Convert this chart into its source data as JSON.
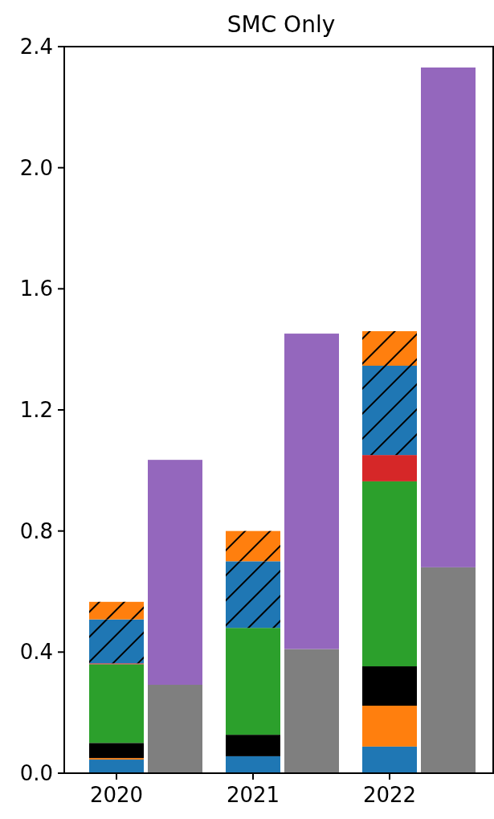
{
  "chart_data": {
    "type": "bar",
    "title": "SMC Only",
    "stacked": true,
    "categories": [
      "2020",
      null,
      "2021",
      null,
      "2022",
      null
    ],
    "ylim": [
      0,
      2.4
    ],
    "yticks": [
      {
        "value": 0,
        "label": "0.0"
      },
      {
        "value": 0.4,
        "label": "0.4"
      },
      {
        "value": 0.8,
        "label": "0.8"
      },
      {
        "value": 1.2,
        "label": "1.2"
      },
      {
        "value": 1.6,
        "label": "1.6"
      },
      {
        "value": 2.0,
        "label": "2.0"
      },
      {
        "value": 2.4,
        "label": "2.4"
      }
    ],
    "series": [
      {
        "color": "#1f77b4",
        "values": [
          0.045,
          null,
          0.056,
          null,
          0.088,
          null
        ]
      },
      {
        "color": "#ff7f0e",
        "values": [
          0.005,
          null,
          0,
          null,
          0.135,
          null
        ]
      },
      {
        "color": "#000000",
        "values": [
          0.05,
          null,
          0.071,
          null,
          0.13,
          null
        ]
      },
      {
        "color": "#2ca02c",
        "values": [
          0.26,
          null,
          0.353,
          null,
          0.611,
          null
        ]
      },
      {
        "color": "#d62728",
        "values": [
          0.003,
          null,
          0,
          null,
          0.087,
          null
        ]
      },
      {
        "color": "#1f77b4",
        "values": [
          0.145,
          null,
          0.22,
          null,
          0.295,
          null
        ]
      },
      {
        "color": "#ff7f0e",
        "values": [
          0.058,
          null,
          0.1,
          null,
          0.114,
          null
        ]
      },
      {
        "color": "#7f7f7f",
        "values": [
          null,
          0.292,
          null,
          0.41,
          null,
          0.68
        ]
      },
      {
        "color": "#9467bd",
        "values": [
          null,
          0.743,
          null,
          1.042,
          null,
          1.651
        ]
      }
    ]
  }
}
